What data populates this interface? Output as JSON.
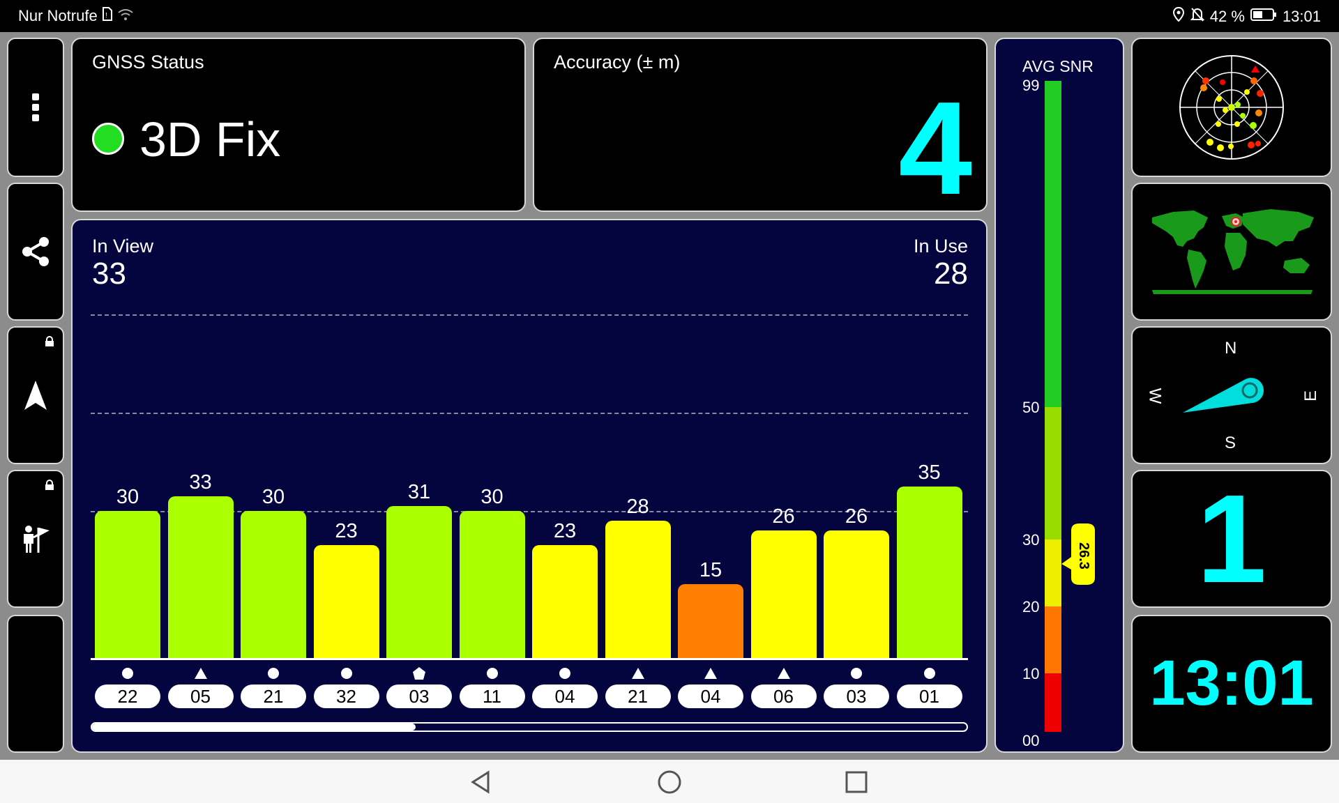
{
  "status_bar": {
    "carrier": "Nur Notrufe",
    "battery": "42 %",
    "time": "13:01"
  },
  "gnss_status": {
    "title": "GNSS Status",
    "value": "3D Fix",
    "indicator_color": "#22dd22"
  },
  "accuracy": {
    "title": "Accuracy (± m)",
    "value": "4"
  },
  "signal": {
    "in_view_label": "In View",
    "in_view": "33",
    "in_use_label": "In Use",
    "in_use": "28",
    "scroll_fraction": 0.37
  },
  "chart_data": {
    "type": "bar",
    "categories": [
      "22",
      "05",
      "21",
      "32",
      "03",
      "11",
      "04",
      "21",
      "04",
      "06",
      "03",
      "01"
    ],
    "values": [
      30,
      33,
      30,
      23,
      31,
      30,
      23,
      28,
      15,
      26,
      26,
      35
    ],
    "markers": [
      "circle",
      "triangle",
      "circle",
      "circle",
      "pentagon",
      "circle",
      "circle",
      "triangle",
      "triangle",
      "triangle",
      "circle",
      "circle"
    ],
    "colors": [
      "#aaff00",
      "#aaff00",
      "#aaff00",
      "#ffff00",
      "#aaff00",
      "#aaff00",
      "#ffff00",
      "#ffff00",
      "#ff8000",
      "#ffff00",
      "#ffff00",
      "#aaff00"
    ],
    "ylim": [
      0,
      99
    ],
    "gridlines": [
      30,
      50,
      70
    ]
  },
  "avg_snr": {
    "title": "AVG SNR",
    "value": "26.3",
    "scale": [
      "99",
      "50",
      "30",
      "20",
      "10",
      "00"
    ]
  },
  "compass": {
    "n": "N",
    "e": "E",
    "s": "S",
    "w": "W"
  },
  "big_number": "1",
  "clock": "13:01",
  "colors": {
    "accent": "#00ffff",
    "navy": "#04043f"
  },
  "icons": {
    "menu": "more-vertical-icon",
    "share": "share-icon",
    "navigate": "navigation-arrow-icon",
    "person": "person-flag-icon",
    "night": "moon-icon"
  }
}
